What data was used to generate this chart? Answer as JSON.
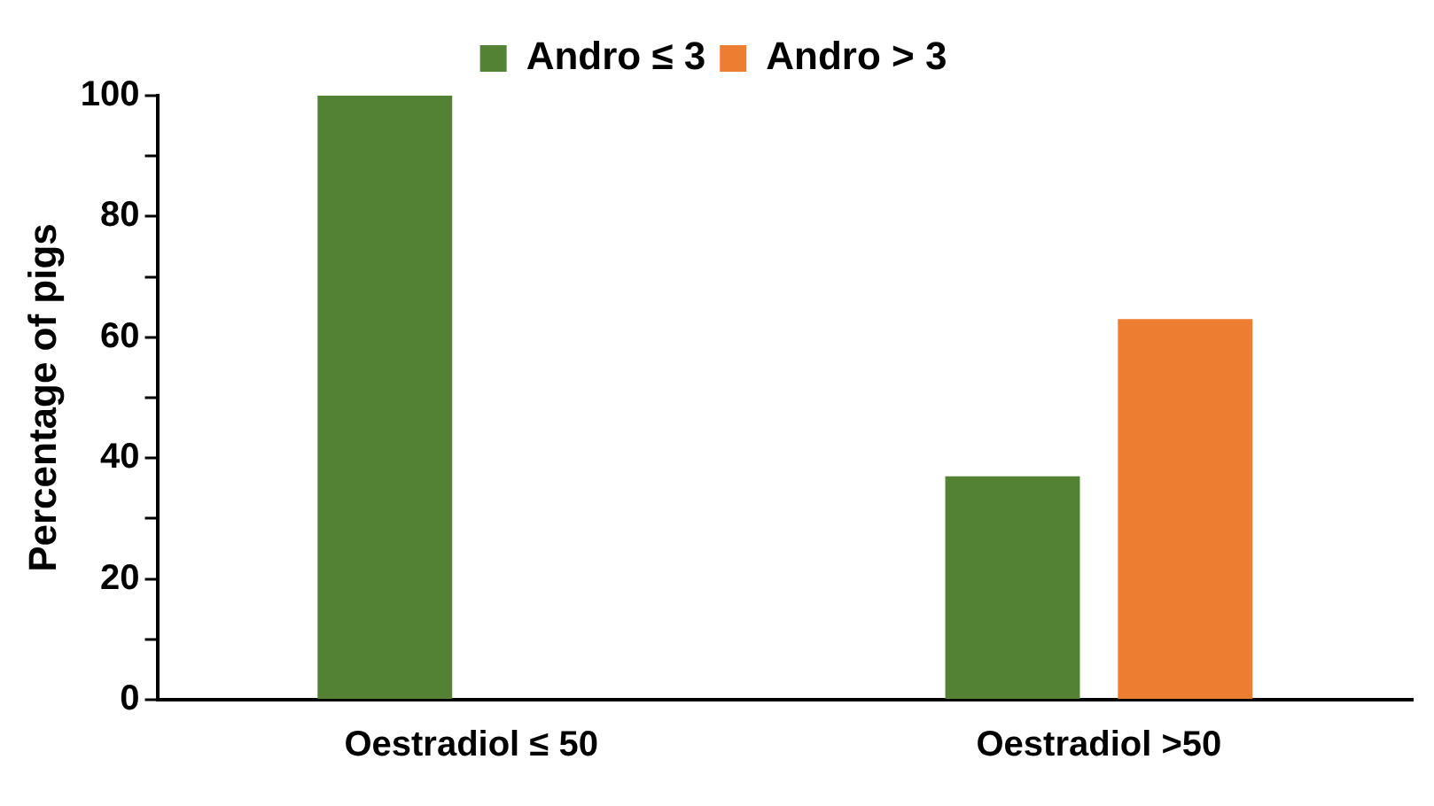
{
  "chart_data": {
    "type": "bar",
    "ylabel": "Percentage of pigs",
    "categories": [
      "Oestradiol ≤ 50",
      "Oestradiol >50"
    ],
    "series": [
      {
        "name": "Andro ≤ 3",
        "color": "#548235",
        "values": [
          100,
          37
        ]
      },
      {
        "name": "Andro > 3",
        "color": "#ed7d31",
        "values": [
          0,
          63
        ]
      }
    ],
    "ylim": [
      0,
      100
    ],
    "yticks": [
      0,
      {
        "value": 10,
        "label": null
      },
      20,
      {
        "value": 30,
        "label": null
      },
      40,
      {
        "value": 50,
        "label": null
      },
      60,
      {
        "value": 70,
        "label": null
      },
      80,
      {
        "value": 90,
        "label": null
      },
      100
    ],
    "grid": false,
    "legend": "top"
  }
}
